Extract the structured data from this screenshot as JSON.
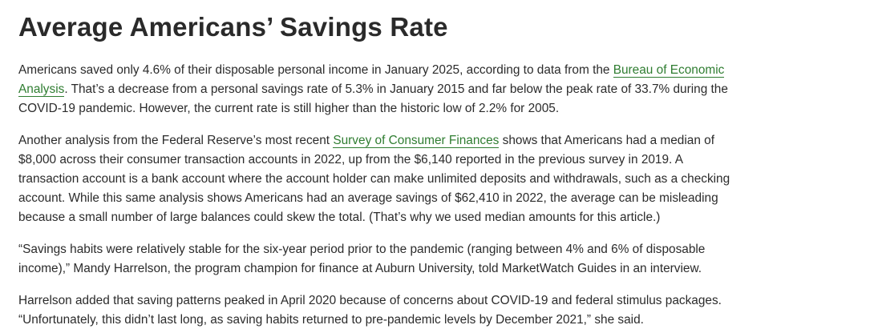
{
  "article": {
    "title": "Average Americans’ Savings Rate",
    "p1": {
      "before": "Americans saved only 4.6% of their disposable personal income in January 2025, according to data from the ",
      "link": "Bureau of Economic Analysis",
      "after": ". That’s a decrease from a personal savings rate of 5.3% in January 2015 and far below the peak rate of 33.7% during the COVID-19 pandemic. However, the current rate is still higher than the historic low of 2.2% for 2005."
    },
    "p2": {
      "before": "Another analysis from the Federal Reserve’s most recent ",
      "link": "Survey of Consumer Finances",
      "after": " shows that Americans had a median of $8,000 across their consumer transaction accounts in 2022, up from the $6,140 reported in the previous survey in 2019. A transaction account is a bank account where the account holder can make unlimited deposits and withdrawals, such as a checking account. While this same analysis shows Americans had an average savings of $62,410 in 2022, the average can be misleading because a small number of large balances could skew the total. (That’s why we used median amounts for this article.)"
    },
    "p3": "“Savings habits were relatively stable for the six-year period prior to the pandemic (ranging between 4% and 6% of disposable income),” Mandy Harrelson, the program champion for finance at Auburn University, told MarketWatch Guides in an interview.",
    "p4": "Harrelson added that saving patterns peaked in April 2020 because of concerns about COVID-19 and federal stimulus packages. “Unfortunately, this didn’t last long, as saving habits returned to pre-pandemic levels by December 2021,” she said."
  },
  "colors": {
    "link": "#2f7d31",
    "text": "#2b2b2b"
  }
}
